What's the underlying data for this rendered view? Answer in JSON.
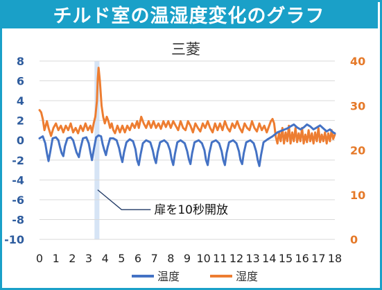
{
  "header": {
    "title": "チルド室の温湿度変化のグラフ"
  },
  "colors": {
    "banner": "#1aa0c8",
    "temperature": "#4472c4",
    "humidity": "#ed7d31",
    "left_axis_text": "#2e5c9e",
    "right_axis_text": "#e57929",
    "door_band": "#d6e4f5"
  },
  "chart_data": {
    "type": "line",
    "title": "三菱",
    "xlabel": "",
    "y_left_label": "",
    "y_right_label": "",
    "x_range": [
      0,
      18
    ],
    "y_left_range": [
      -10,
      8
    ],
    "y_right_range": [
      0,
      40
    ],
    "x_ticks": [
      "0",
      "1",
      "2",
      "3",
      "4",
      "5",
      "6",
      "7",
      "8",
      "9",
      "10",
      "11",
      "12",
      "13",
      "14",
      "15",
      "16",
      "17",
      "18"
    ],
    "y_left_ticks": [
      "8",
      "6",
      "4",
      "2",
      "0",
      "-2",
      "-4",
      "-6",
      "-8",
      "-10"
    ],
    "y_right_ticks": [
      "40",
      "30",
      "20",
      "10",
      "0"
    ],
    "grid": "horizontal",
    "legend": "bottom",
    "annotation": {
      "text": "扉を10秒開放",
      "x": 3.5
    },
    "series": [
      {
        "name": "温度",
        "axis": "left",
        "points": [
          [
            0.0,
            0.2
          ],
          [
            0.2,
            0.4
          ],
          [
            0.35,
            -0.3
          ],
          [
            0.45,
            -1.3
          ],
          [
            0.55,
            -2.1
          ],
          [
            0.65,
            -1.2
          ],
          [
            0.8,
            0.2
          ],
          [
            1.0,
            0.3
          ],
          [
            1.15,
            0.0
          ],
          [
            1.25,
            -0.7
          ],
          [
            1.35,
            -1.3
          ],
          [
            1.45,
            -1.6
          ],
          [
            1.55,
            -0.6
          ],
          [
            1.7,
            0.2
          ],
          [
            1.9,
            0.3
          ],
          [
            2.05,
            0.0
          ],
          [
            2.15,
            -0.6
          ],
          [
            2.25,
            -1.2
          ],
          [
            2.4,
            -1.7
          ],
          [
            2.5,
            -0.8
          ],
          [
            2.65,
            0.2
          ],
          [
            2.85,
            0.3
          ],
          [
            3.0,
            -0.3
          ],
          [
            3.1,
            -1.2
          ],
          [
            3.2,
            -2.0
          ],
          [
            3.3,
            -1.0
          ],
          [
            3.45,
            0.3
          ],
          [
            3.6,
            0.5
          ],
          [
            3.75,
            0.4
          ],
          [
            3.85,
            -0.4
          ],
          [
            3.95,
            -1.0
          ],
          [
            4.05,
            -1.5
          ],
          [
            4.15,
            -0.7
          ],
          [
            4.3,
            0.2
          ],
          [
            4.5,
            0.2
          ],
          [
            4.7,
            0.0
          ],
          [
            4.85,
            -0.8
          ],
          [
            4.95,
            -1.6
          ],
          [
            5.05,
            -2.2
          ],
          [
            5.15,
            -1.2
          ],
          [
            5.3,
            -0.2
          ],
          [
            5.5,
            0.1
          ],
          [
            5.7,
            -0.1
          ],
          [
            5.85,
            -0.9
          ],
          [
            5.95,
            -2.0
          ],
          [
            6.05,
            -2.5
          ],
          [
            6.15,
            -1.5
          ],
          [
            6.3,
            -0.3
          ],
          [
            6.5,
            0.0
          ],
          [
            6.75,
            -0.2
          ],
          [
            6.9,
            -1.0
          ],
          [
            7.0,
            -1.8
          ],
          [
            7.1,
            -2.3
          ],
          [
            7.2,
            -1.2
          ],
          [
            7.35,
            -0.2
          ],
          [
            7.6,
            0.0
          ],
          [
            7.8,
            -0.3
          ],
          [
            7.95,
            -1.0
          ],
          [
            8.05,
            -1.9
          ],
          [
            8.15,
            -2.5
          ],
          [
            8.25,
            -1.4
          ],
          [
            8.4,
            -0.2
          ],
          [
            8.6,
            0.0
          ],
          [
            8.85,
            -0.3
          ],
          [
            9.0,
            -1.1
          ],
          [
            9.1,
            -1.9
          ],
          [
            9.2,
            -2.4
          ],
          [
            9.3,
            -1.3
          ],
          [
            9.45,
            -0.2
          ],
          [
            9.7,
            0.0
          ],
          [
            9.9,
            -0.3
          ],
          [
            10.05,
            -1.0
          ],
          [
            10.15,
            -2.0
          ],
          [
            10.25,
            -2.5
          ],
          [
            10.35,
            -1.3
          ],
          [
            10.5,
            -0.2
          ],
          [
            10.75,
            0.0
          ],
          [
            10.95,
            -0.3
          ],
          [
            11.1,
            -1.1
          ],
          [
            11.2,
            -2.0
          ],
          [
            11.3,
            -2.5
          ],
          [
            11.4,
            -1.3
          ],
          [
            11.55,
            -0.2
          ],
          [
            11.8,
            0.0
          ],
          [
            12.0,
            -0.3
          ],
          [
            12.15,
            -1.1
          ],
          [
            12.25,
            -2.0
          ],
          [
            12.35,
            -2.4
          ],
          [
            12.45,
            -1.3
          ],
          [
            12.6,
            -0.2
          ],
          [
            12.85,
            0.0
          ],
          [
            13.05,
            -0.3
          ],
          [
            13.2,
            -1.1
          ],
          [
            13.3,
            -2.0
          ],
          [
            13.4,
            -2.6
          ],
          [
            13.5,
            -1.5
          ],
          [
            13.65,
            -0.2
          ],
          [
            13.9,
            0.1
          ],
          [
            14.2,
            0.4
          ],
          [
            14.5,
            0.8
          ],
          [
            14.8,
            1.0
          ],
          [
            15.1,
            1.2
          ],
          [
            15.3,
            1.4
          ],
          [
            15.5,
            1.6
          ],
          [
            15.7,
            1.3
          ],
          [
            15.9,
            1.1
          ],
          [
            16.1,
            1.3
          ],
          [
            16.3,
            1.6
          ],
          [
            16.5,
            1.4
          ],
          [
            16.7,
            1.1
          ],
          [
            16.9,
            1.3
          ],
          [
            17.1,
            1.5
          ],
          [
            17.3,
            1.2
          ],
          [
            17.5,
            0.9
          ],
          [
            17.7,
            1.1
          ],
          [
            17.9,
            0.8
          ],
          [
            18.0,
            0.7
          ]
        ]
      },
      {
        "name": "湿度",
        "axis": "right",
        "points": [
          [
            0.0,
            29.0
          ],
          [
            0.1,
            28.5
          ],
          [
            0.2,
            27.0
          ],
          [
            0.3,
            24.5
          ],
          [
            0.45,
            26.5
          ],
          [
            0.55,
            25.0
          ],
          [
            0.7,
            23.2
          ],
          [
            0.85,
            25.0
          ],
          [
            1.0,
            26.0
          ],
          [
            1.15,
            24.5
          ],
          [
            1.3,
            25.5
          ],
          [
            1.45,
            24.0
          ],
          [
            1.6,
            25.5
          ],
          [
            1.75,
            24.5
          ],
          [
            1.9,
            26.0
          ],
          [
            2.05,
            24.0
          ],
          [
            2.2,
            25.0
          ],
          [
            2.35,
            23.8
          ],
          [
            2.5,
            25.5
          ],
          [
            2.65,
            24.3
          ],
          [
            2.8,
            26.0
          ],
          [
            2.95,
            24.5
          ],
          [
            3.1,
            25.5
          ],
          [
            3.2,
            24.0
          ],
          [
            3.3,
            26.0
          ],
          [
            3.4,
            27.5
          ],
          [
            3.5,
            31.0
          ],
          [
            3.55,
            36.0
          ],
          [
            3.6,
            38.5
          ],
          [
            3.68,
            35.5
          ],
          [
            3.78,
            30.0
          ],
          [
            3.88,
            27.5
          ],
          [
            3.98,
            26.0
          ],
          [
            4.1,
            27.5
          ],
          [
            4.2,
            26.5
          ],
          [
            4.3,
            25.0
          ],
          [
            4.4,
            26.0
          ],
          [
            4.5,
            24.5
          ],
          [
            4.6,
            23.8
          ],
          [
            4.75,
            25.5
          ],
          [
            4.9,
            24.0
          ],
          [
            5.05,
            25.5
          ],
          [
            5.2,
            24.0
          ],
          [
            5.35,
            25.5
          ],
          [
            5.5,
            24.5
          ],
          [
            5.65,
            26.0
          ],
          [
            5.8,
            25.0
          ],
          [
            5.95,
            26.5
          ],
          [
            6.05,
            25.0
          ],
          [
            6.2,
            27.5
          ],
          [
            6.35,
            26.0
          ],
          [
            6.5,
            25.0
          ],
          [
            6.65,
            26.5
          ],
          [
            6.8,
            25.0
          ],
          [
            6.95,
            26.5
          ],
          [
            7.1,
            25.0
          ],
          [
            7.25,
            26.0
          ],
          [
            7.4,
            24.8
          ],
          [
            7.55,
            26.5
          ],
          [
            7.7,
            25.2
          ],
          [
            7.85,
            26.5
          ],
          [
            8.0,
            25.0
          ],
          [
            8.15,
            26.5
          ],
          [
            8.3,
            25.5
          ],
          [
            8.45,
            24.5
          ],
          [
            8.6,
            26.5
          ],
          [
            8.75,
            25.0
          ],
          [
            8.9,
            24.5
          ],
          [
            9.05,
            26.5
          ],
          [
            9.2,
            25.5
          ],
          [
            9.35,
            24.0
          ],
          [
            9.5,
            26.0
          ],
          [
            9.65,
            25.0
          ],
          [
            9.8,
            24.2
          ],
          [
            9.95,
            26.0
          ],
          [
            10.1,
            25.0
          ],
          [
            10.25,
            26.5
          ],
          [
            10.4,
            25.0
          ],
          [
            10.55,
            24.0
          ],
          [
            10.7,
            26.0
          ],
          [
            10.85,
            24.5
          ],
          [
            11.0,
            26.0
          ],
          [
            11.15,
            24.5
          ],
          [
            11.3,
            26.5
          ],
          [
            11.45,
            25.0
          ],
          [
            11.6,
            24.2
          ],
          [
            11.75,
            26.0
          ],
          [
            11.9,
            25.0
          ],
          [
            12.05,
            26.5
          ],
          [
            12.2,
            25.0
          ],
          [
            12.35,
            24.0
          ],
          [
            12.5,
            26.0
          ],
          [
            12.65,
            25.0
          ],
          [
            12.8,
            24.5
          ],
          [
            12.95,
            26.5
          ],
          [
            13.1,
            25.0
          ],
          [
            13.25,
            24.2
          ],
          [
            13.4,
            26.0
          ],
          [
            13.55,
            24.5
          ],
          [
            13.7,
            25.5
          ],
          [
            13.85,
            24.0
          ],
          [
            14.0,
            25.5
          ],
          [
            14.1,
            26.5
          ],
          [
            14.2,
            27.0
          ],
          [
            14.3,
            26.0
          ],
          [
            14.4,
            23.0
          ],
          [
            14.5,
            21.5
          ],
          [
            14.6,
            24.0
          ],
          [
            14.7,
            22.0
          ],
          [
            14.8,
            25.0
          ],
          [
            14.9,
            21.5
          ],
          [
            15.0,
            24.0
          ],
          [
            15.1,
            22.0
          ],
          [
            15.2,
            25.5
          ],
          [
            15.3,
            21.5
          ],
          [
            15.4,
            24.0
          ],
          [
            15.5,
            22.0
          ],
          [
            15.6,
            25.0
          ],
          [
            15.7,
            21.8
          ],
          [
            15.8,
            23.8
          ],
          [
            15.9,
            22.0
          ],
          [
            16.0,
            25.0
          ],
          [
            16.1,
            21.5
          ],
          [
            16.2,
            23.5
          ],
          [
            16.3,
            21.8
          ],
          [
            16.4,
            24.5
          ],
          [
            16.5,
            22.0
          ],
          [
            16.6,
            23.8
          ],
          [
            16.7,
            21.5
          ],
          [
            16.8,
            24.0
          ],
          [
            16.9,
            22.0
          ],
          [
            17.0,
            25.0
          ],
          [
            17.1,
            21.8
          ],
          [
            17.2,
            23.5
          ],
          [
            17.3,
            22.0
          ],
          [
            17.4,
            24.0
          ],
          [
            17.5,
            21.5
          ],
          [
            17.6,
            23.8
          ],
          [
            17.7,
            22.0
          ],
          [
            17.8,
            24.5
          ],
          [
            17.9,
            22.5
          ],
          [
            18.0,
            23.5
          ]
        ]
      }
    ]
  }
}
